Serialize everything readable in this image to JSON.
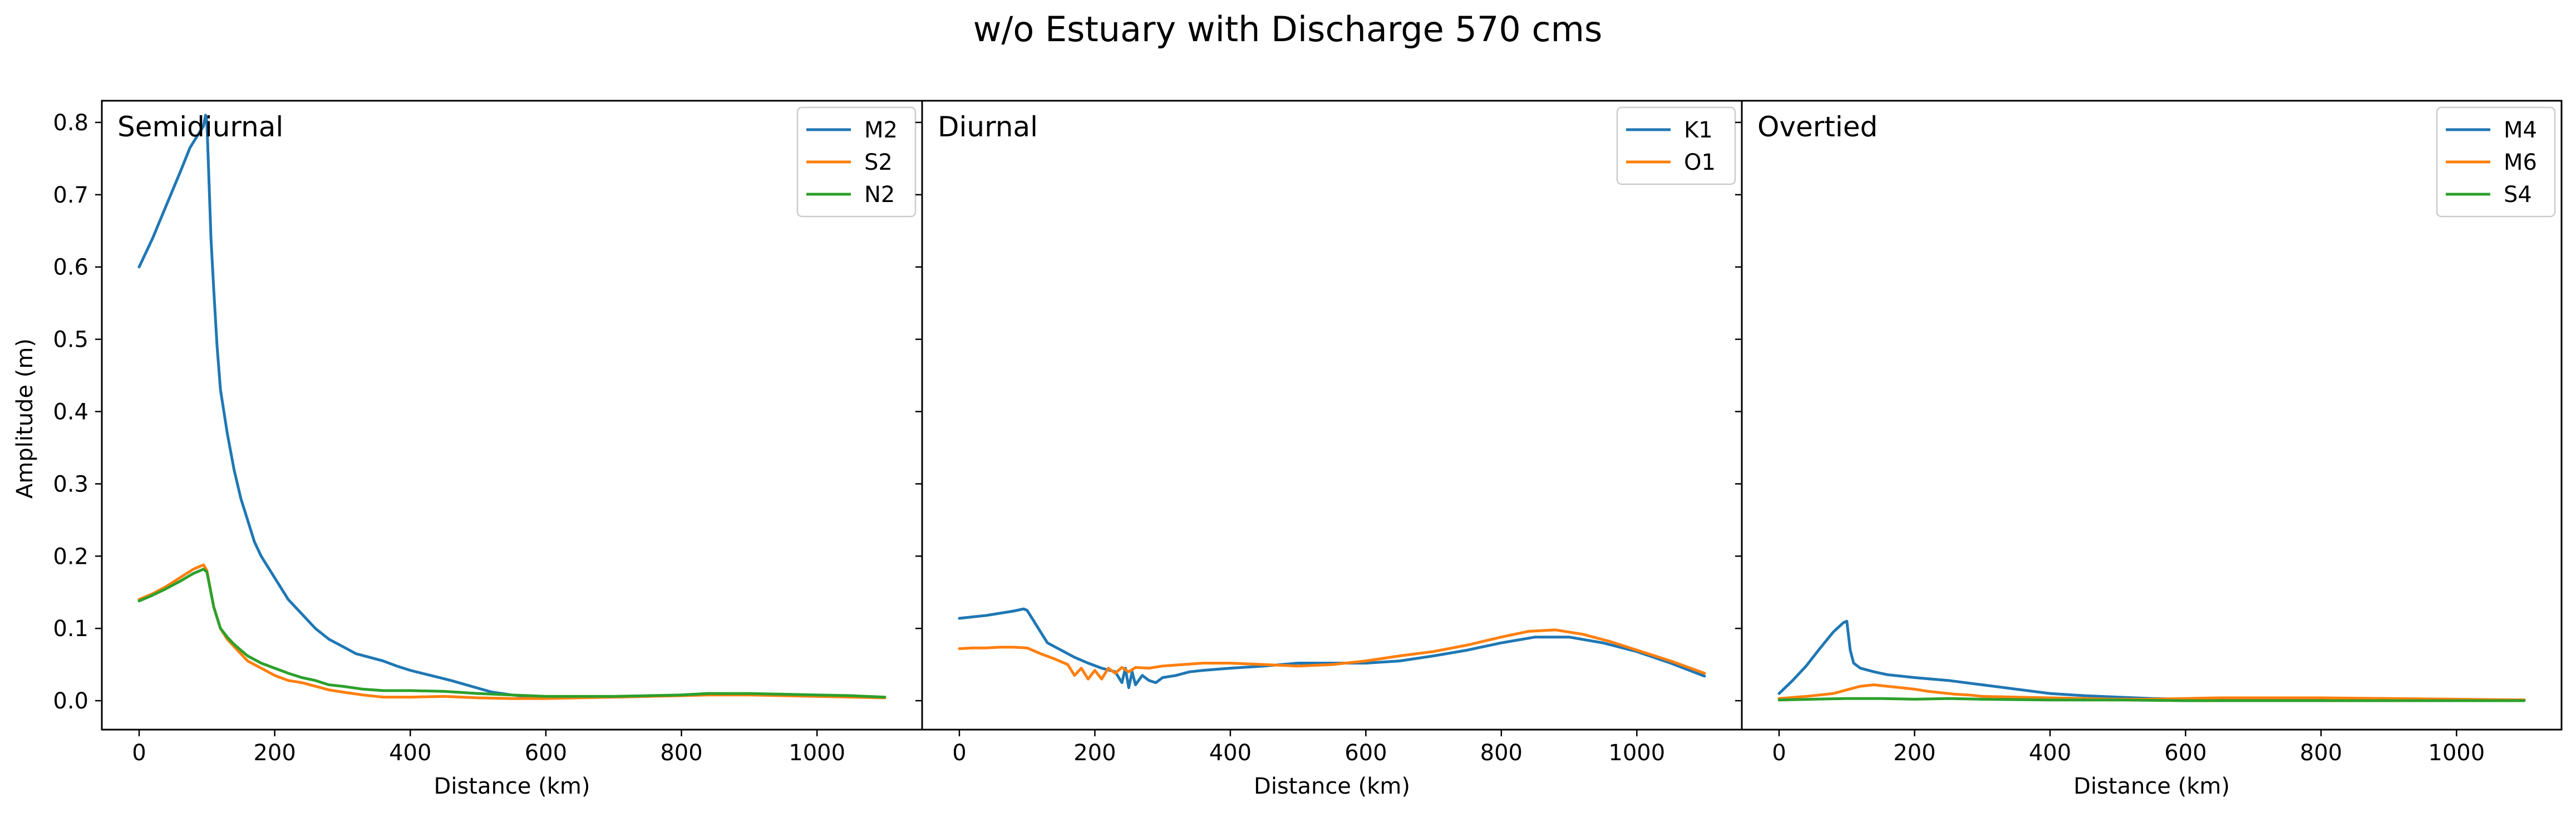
{
  "figure": {
    "suptitle": "w/o Estuary with Discharge 570 cms",
    "ylabel": "Amplitude (m)",
    "xlabel": "Distance (km)"
  },
  "colors": {
    "blue": "#1f77b4",
    "orange": "#ff7f0e",
    "green": "#2ca02c"
  },
  "chart_data": [
    {
      "type": "line",
      "panel_label": "Semidiurnal",
      "xlabel": "Distance (km)",
      "ylabel": "Amplitude (m)",
      "xlim": [
        -55,
        1155
      ],
      "ylim": [
        -0.04,
        0.83
      ],
      "xticks": [
        0,
        200,
        400,
        600,
        800,
        1000
      ],
      "yticks": [
        0.0,
        0.1,
        0.2,
        0.3,
        0.4,
        0.5,
        0.6,
        0.7,
        0.8
      ],
      "ytick_labels": [
        "0.0",
        "0.1",
        "0.2",
        "0.3",
        "0.4",
        "0.5",
        "0.6",
        "0.7",
        "0.8"
      ],
      "legend_position": "upper right",
      "series": [
        {
          "name": "M2",
          "color": "#1f77b4",
          "x": [
            0,
            20,
            40,
            60,
            75,
            85,
            95,
            98,
            100,
            103,
            106,
            110,
            115,
            120,
            130,
            140,
            150,
            160,
            170,
            180,
            200,
            220,
            240,
            260,
            280,
            300,
            320,
            340,
            360,
            380,
            400,
            430,
            460,
            490,
            520,
            550,
            580,
            600,
            650,
            700,
            750,
            800,
            840,
            900,
            950,
            1000,
            1050,
            1100
          ],
          "y": [
            0.6,
            0.64,
            0.685,
            0.73,
            0.765,
            0.78,
            0.795,
            0.81,
            0.8,
            0.72,
            0.64,
            0.57,
            0.49,
            0.43,
            0.37,
            0.32,
            0.28,
            0.25,
            0.22,
            0.2,
            0.17,
            0.14,
            0.12,
            0.1,
            0.085,
            0.075,
            0.065,
            0.06,
            0.055,
            0.048,
            0.042,
            0.035,
            0.028,
            0.02,
            0.012,
            0.008,
            0.005,
            0.004,
            0.005,
            0.005,
            0.006,
            0.008,
            0.01,
            0.009,
            0.008,
            0.007,
            0.006,
            0.005
          ]
        },
        {
          "name": "S2",
          "color": "#ff7f0e",
          "x": [
            0,
            20,
            40,
            60,
            80,
            95,
            100,
            110,
            120,
            130,
            140,
            150,
            160,
            180,
            200,
            220,
            240,
            260,
            280,
            300,
            330,
            360,
            400,
            450,
            500,
            550,
            600,
            650,
            700,
            750,
            800,
            840,
            900,
            950,
            1000,
            1050,
            1100
          ],
          "y": [
            0.14,
            0.148,
            0.158,
            0.17,
            0.182,
            0.188,
            0.18,
            0.13,
            0.1,
            0.085,
            0.075,
            0.065,
            0.055,
            0.045,
            0.035,
            0.028,
            0.025,
            0.02,
            0.015,
            0.012,
            0.008,
            0.005,
            0.005,
            0.006,
            0.004,
            0.003,
            0.003,
            0.004,
            0.005,
            0.006,
            0.007,
            0.008,
            0.008,
            0.007,
            0.006,
            0.005,
            0.004
          ]
        },
        {
          "name": "N2",
          "color": "#2ca02c",
          "x": [
            0,
            20,
            40,
            60,
            80,
            95,
            100,
            110,
            120,
            130,
            140,
            150,
            160,
            180,
            200,
            220,
            240,
            260,
            280,
            300,
            330,
            360,
            400,
            450,
            500,
            550,
            600,
            650,
            700,
            750,
            800,
            840,
            900,
            950,
            1000,
            1050,
            1100
          ],
          "y": [
            0.138,
            0.146,
            0.155,
            0.165,
            0.176,
            0.182,
            0.178,
            0.13,
            0.1,
            0.088,
            0.078,
            0.07,
            0.062,
            0.052,
            0.045,
            0.038,
            0.032,
            0.028,
            0.022,
            0.02,
            0.016,
            0.014,
            0.014,
            0.013,
            0.01,
            0.008,
            0.006,
            0.006,
            0.006,
            0.007,
            0.008,
            0.01,
            0.01,
            0.009,
            0.008,
            0.007,
            0.005
          ]
        }
      ]
    },
    {
      "type": "line",
      "panel_label": "Diurnal",
      "xlabel": "Distance (km)",
      "ylabel": "",
      "xlim": [
        -55,
        1155
      ],
      "ylim": [
        -0.04,
        0.83
      ],
      "xticks": [
        0,
        200,
        400,
        600,
        800,
        1000
      ],
      "yticks": [],
      "ytick_labels": [],
      "legend_position": "upper right",
      "series": [
        {
          "name": "K1",
          "color": "#1f77b4",
          "x": [
            0,
            20,
            40,
            60,
            80,
            95,
            100,
            110,
            120,
            130,
            150,
            170,
            190,
            210,
            230,
            240,
            245,
            250,
            255,
            260,
            270,
            280,
            290,
            300,
            320,
            340,
            360,
            400,
            450,
            500,
            550,
            600,
            650,
            700,
            750,
            800,
            850,
            900,
            950,
            1000,
            1050,
            1100
          ],
          "y": [
            0.114,
            0.116,
            0.118,
            0.121,
            0.124,
            0.127,
            0.125,
            0.11,
            0.095,
            0.08,
            0.07,
            0.06,
            0.052,
            0.045,
            0.04,
            0.025,
            0.045,
            0.018,
            0.04,
            0.022,
            0.035,
            0.028,
            0.025,
            0.032,
            0.035,
            0.04,
            0.042,
            0.045,
            0.048,
            0.052,
            0.052,
            0.052,
            0.055,
            0.062,
            0.07,
            0.08,
            0.088,
            0.088,
            0.08,
            0.068,
            0.052,
            0.034
          ]
        },
        {
          "name": "O1",
          "color": "#ff7f0e",
          "x": [
            0,
            20,
            40,
            60,
            80,
            100,
            120,
            140,
            160,
            170,
            180,
            190,
            200,
            210,
            220,
            230,
            240,
            250,
            260,
            280,
            300,
            330,
            360,
            400,
            450,
            500,
            550,
            600,
            650,
            700,
            750,
            800,
            840,
            880,
            920,
            960,
            1000,
            1050,
            1100
          ],
          "y": [
            0.072,
            0.073,
            0.073,
            0.074,
            0.074,
            0.073,
            0.065,
            0.058,
            0.05,
            0.035,
            0.045,
            0.03,
            0.042,
            0.03,
            0.045,
            0.038,
            0.046,
            0.04,
            0.046,
            0.045,
            0.048,
            0.05,
            0.052,
            0.052,
            0.05,
            0.048,
            0.05,
            0.055,
            0.062,
            0.068,
            0.077,
            0.088,
            0.096,
            0.098,
            0.092,
            0.082,
            0.07,
            0.055,
            0.038
          ]
        }
      ]
    },
    {
      "type": "line",
      "panel_label": "Overtied",
      "xlabel": "Distance (km)",
      "ylabel": "",
      "xlim": [
        -55,
        1155
      ],
      "ylim": [
        -0.04,
        0.83
      ],
      "xticks": [
        0,
        200,
        400,
        600,
        800,
        1000
      ],
      "yticks": [],
      "ytick_labels": [],
      "legend_position": "upper right",
      "series": [
        {
          "name": "M4",
          "color": "#1f77b4",
          "x": [
            0,
            20,
            40,
            60,
            80,
            95,
            100,
            105,
            110,
            120,
            140,
            160,
            180,
            200,
            250,
            300,
            350,
            400,
            450,
            500,
            550,
            600,
            700,
            800,
            900,
            1000,
            1100
          ],
          "y": [
            0.01,
            0.028,
            0.048,
            0.072,
            0.095,
            0.108,
            0.11,
            0.07,
            0.052,
            0.045,
            0.04,
            0.036,
            0.034,
            0.032,
            0.028,
            0.022,
            0.016,
            0.01,
            0.007,
            0.005,
            0.003,
            0.002,
            0.002,
            0.002,
            0.002,
            0.001,
            0.001
          ]
        },
        {
          "name": "M6",
          "color": "#ff7f0e",
          "x": [
            0,
            40,
            80,
            100,
            120,
            140,
            160,
            180,
            200,
            220,
            240,
            260,
            280,
            300,
            350,
            400,
            450,
            500,
            550,
            600,
            650,
            700,
            800,
            900,
            1000,
            1100
          ],
          "y": [
            0.003,
            0.006,
            0.01,
            0.015,
            0.02,
            0.022,
            0.02,
            0.018,
            0.016,
            0.013,
            0.011,
            0.009,
            0.008,
            0.006,
            0.005,
            0.004,
            0.003,
            0.002,
            0.002,
            0.003,
            0.004,
            0.004,
            0.004,
            0.003,
            0.002,
            0.001
          ]
        },
        {
          "name": "S4",
          "color": "#2ca02c",
          "x": [
            0,
            50,
            100,
            150,
            200,
            250,
            300,
            400,
            500,
            600,
            700,
            800,
            900,
            1000,
            1100
          ],
          "y": [
            0.001,
            0.002,
            0.003,
            0.003,
            0.002,
            0.003,
            0.002,
            0.001,
            0.001,
            0.0,
            0.0,
            0.0,
            0.0,
            0.0,
            0.0
          ]
        }
      ]
    }
  ]
}
